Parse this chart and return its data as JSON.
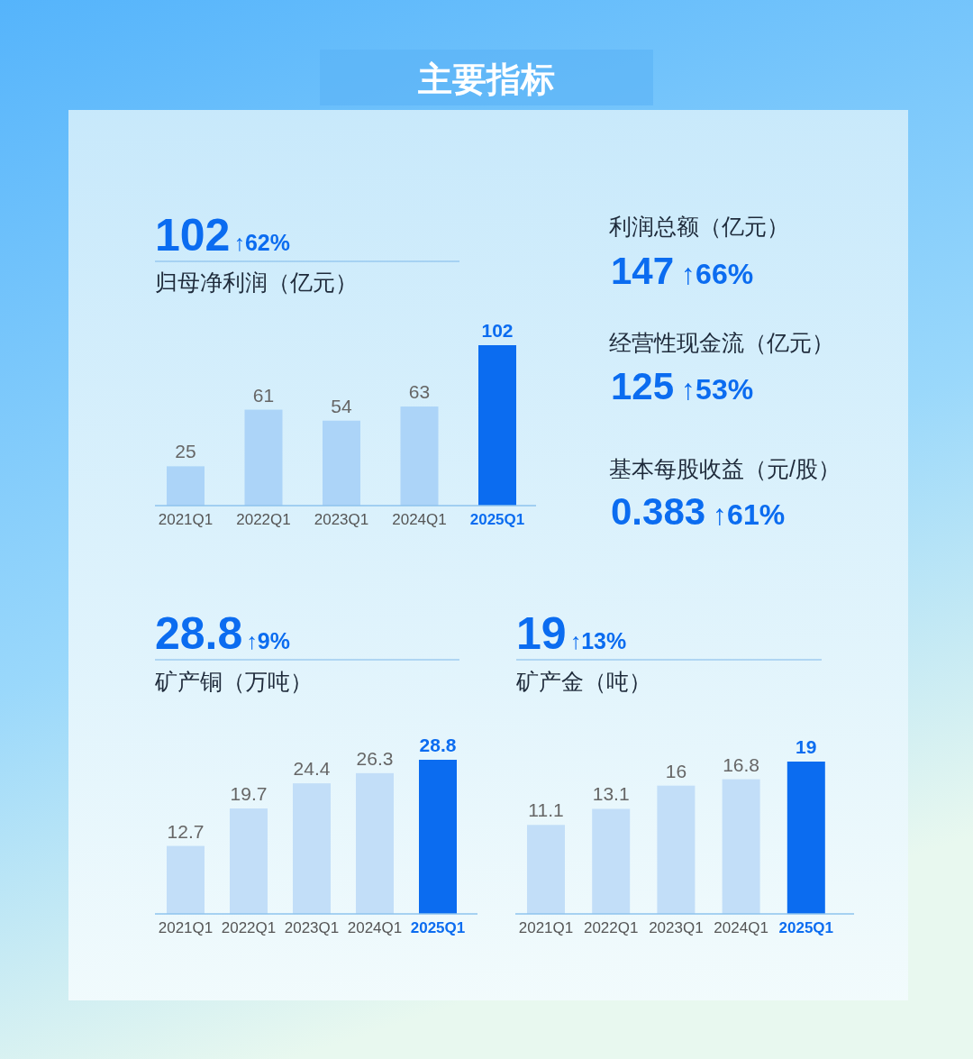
{
  "chart_data": [
    {
      "type": "other",
      "title": "主要指标"
    },
    {
      "type": "bar",
      "title": "归母净利润（亿元）",
      "annotations": [
        "102",
        "↑62%"
      ],
      "categories": [
        "2021Q1",
        "2022Q1",
        "2023Q1",
        "2024Q1",
        "2025Q1"
      ],
      "values": [
        25,
        61,
        54,
        63,
        102
      ],
      "colors": [
        "#acd4f8",
        "#acd4f8",
        "#acd4f8",
        "#acd4f8",
        "#0b6cf0"
      ],
      "data_labels": true
    },
    {
      "type": "other",
      "annotations": [
        "利润总额（亿元）",
        "147",
        "↑66%",
        "经营性现金流（亿元）",
        "125",
        "↑53%",
        "基本每股收益（元/股）",
        "0.383",
        "↑61%"
      ]
    },
    {
      "type": "bar",
      "title": "矿产铜（万吨）",
      "annotations": [
        "28.8",
        "↑9%"
      ],
      "categories": [
        "2021Q1",
        "2022Q1",
        "2023Q1",
        "2024Q1",
        "2025Q1"
      ],
      "values": [
        12.7,
        19.7,
        24.4,
        26.3,
        28.8
      ],
      "colors": [
        "#c2def8",
        "#c2def8",
        "#c2def8",
        "#c2def8",
        "#0b6cf0"
      ],
      "data_labels": true
    },
    {
      "type": "bar",
      "title": "矿产金（吨）",
      "annotations": [
        "19",
        "↑13%"
      ],
      "categories": [
        "2021Q1",
        "2022Q1",
        "2023Q1",
        "2024Q1",
        "2025Q1"
      ],
      "values": [
        11.1,
        13.1,
        16,
        16.8,
        19
      ],
      "colors": [
        "#c2def8",
        "#c2def8",
        "#c2def8",
        "#c2def8",
        "#0b6cf0"
      ],
      "data_labels": true
    }
  ]
}
